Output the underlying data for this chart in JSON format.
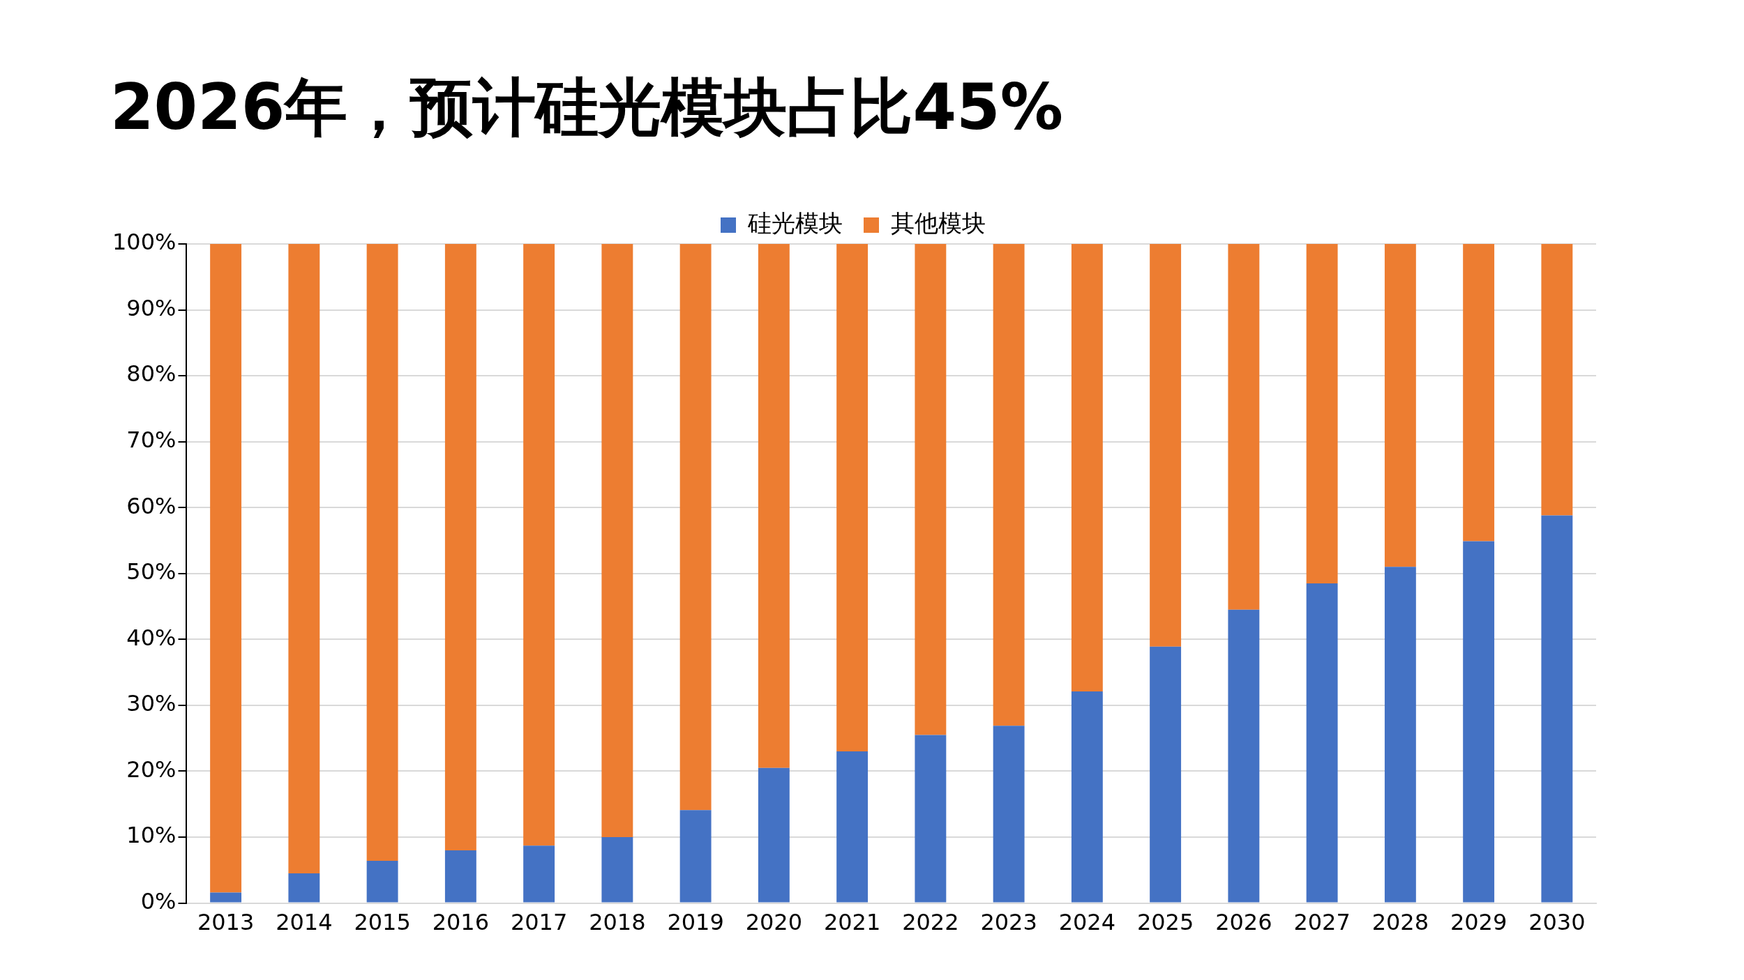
{
  "chart_data": {
    "type": "bar",
    "title": "2026年，预计硅光模块占比45%",
    "categories": [
      "2013",
      "2014",
      "2015",
      "2016",
      "2017",
      "2018",
      "2019",
      "2020",
      "2021",
      "2022",
      "2023",
      "2024",
      "2025",
      "2026",
      "2027",
      "2028",
      "2029",
      "2030"
    ],
    "series": [
      {
        "name": "硅光模块",
        "color": "#4472c4",
        "values": [
          1.6,
          4.5,
          6.4,
          8.0,
          8.7,
          10.0,
          14.1,
          20.5,
          23.0,
          25.5,
          26.9,
          32.1,
          38.9,
          44.5,
          48.5,
          51.0,
          54.9,
          58.8
        ]
      },
      {
        "name": "其他模块",
        "color": "#ed7d31",
        "values": [
          98.4,
          95.5,
          93.6,
          92.0,
          91.3,
          90.0,
          85.9,
          79.5,
          77.0,
          74.5,
          73.1,
          67.9,
          61.1,
          55.5,
          51.5,
          49.0,
          45.1,
          41.2
        ]
      }
    ],
    "stacked": true,
    "ylim": [
      0,
      100
    ],
    "yticks": [
      {
        "value": 0,
        "label": "0%"
      },
      {
        "value": 10,
        "label": "10%"
      },
      {
        "value": 20,
        "label": "20%"
      },
      {
        "value": 30,
        "label": "30%"
      },
      {
        "value": 40,
        "label": "40%"
      },
      {
        "value": 50,
        "label": "50%"
      },
      {
        "value": 60,
        "label": "60%"
      },
      {
        "value": 70,
        "label": "70%"
      },
      {
        "value": 80,
        "label": "80%"
      },
      {
        "value": 90,
        "label": "90%"
      },
      {
        "value": 100,
        "label": "100%"
      }
    ],
    "grid": "y",
    "legend": "top"
  }
}
